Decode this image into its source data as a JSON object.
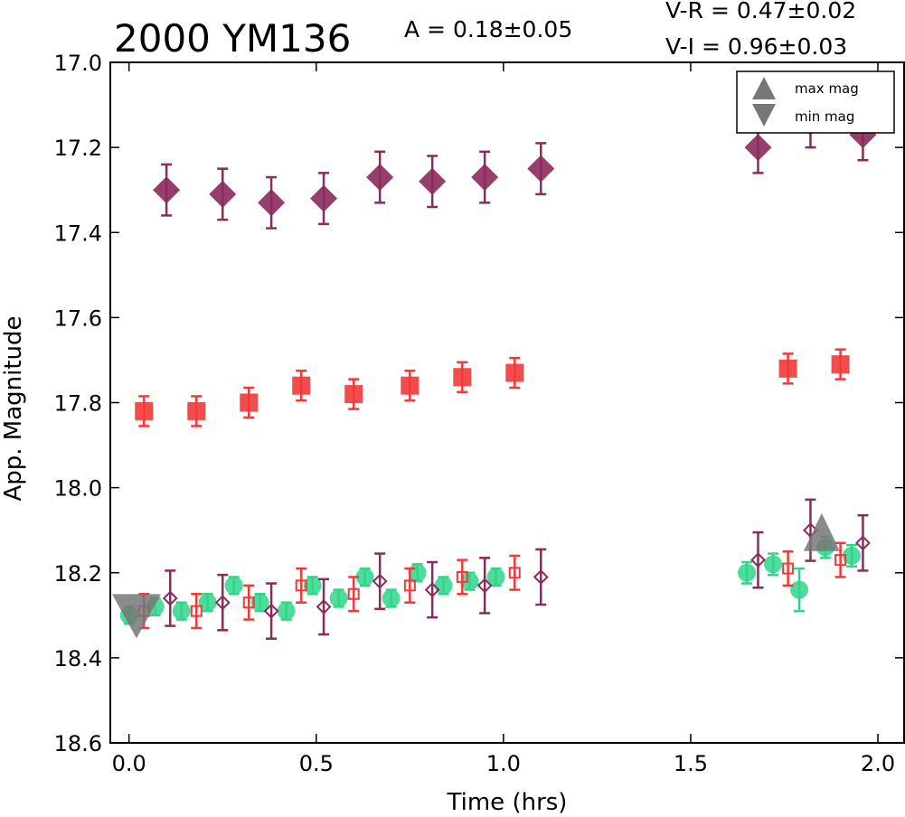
{
  "header": {
    "title": "2000 YM136",
    "amplitude": "A  = 0.18±0.05",
    "color_vr": "V-R = 0.47±0.02",
    "color_vi": "V-I  = 0.96±0.03"
  },
  "legend": {
    "max_label": "max mag",
    "min_label": "min mag",
    "placement": "top-right"
  },
  "chart_data": {
    "type": "scatter",
    "title": "2000 YM136",
    "xlabel": "Time (hrs)",
    "ylabel": "App. Magnitude",
    "xlim": [
      -0.05,
      2.07
    ],
    "ylim": [
      17.0,
      18.6
    ],
    "y_inverted": true,
    "grid": false,
    "x_ticks": [
      "0.0",
      "0.5",
      "1.0",
      "1.5",
      "2.0"
    ],
    "y_ticks": [
      "17.0",
      "17.2",
      "17.4",
      "17.6",
      "17.8",
      "18.0",
      "18.2",
      "18.4",
      "18.6"
    ],
    "colors": {
      "purple": "#8b2a5c",
      "red": "#f23838",
      "green": "#2ed68a",
      "marker_gray": "#777777"
    },
    "series": [
      {
        "marker": "filled-diamond",
        "color": "#8b2a5c",
        "points": [
          {
            "x": 0.1,
            "y": 17.3,
            "err": 0.06
          },
          {
            "x": 0.25,
            "y": 17.31,
            "err": 0.06
          },
          {
            "x": 0.38,
            "y": 17.33,
            "err": 0.06
          },
          {
            "x": 0.52,
            "y": 17.32,
            "err": 0.06
          },
          {
            "x": 0.67,
            "y": 17.27,
            "err": 0.06
          },
          {
            "x": 0.81,
            "y": 17.28,
            "err": 0.06
          },
          {
            "x": 0.95,
            "y": 17.27,
            "err": 0.06
          },
          {
            "x": 1.1,
            "y": 17.25,
            "err": 0.06
          },
          {
            "x": 1.68,
            "y": 17.2,
            "err": 0.06
          },
          {
            "x": 1.82,
            "y": 17.14,
            "err": 0.06
          },
          {
            "x": 1.96,
            "y": 17.17,
            "err": 0.06
          }
        ]
      },
      {
        "marker": "filled-square",
        "color": "#f23838",
        "points": [
          {
            "x": 0.04,
            "y": 17.82,
            "err": 0.035
          },
          {
            "x": 0.18,
            "y": 17.82,
            "err": 0.035
          },
          {
            "x": 0.32,
            "y": 17.8,
            "err": 0.035
          },
          {
            "x": 0.46,
            "y": 17.76,
            "err": 0.035
          },
          {
            "x": 0.6,
            "y": 17.78,
            "err": 0.035
          },
          {
            "x": 0.75,
            "y": 17.76,
            "err": 0.035
          },
          {
            "x": 0.89,
            "y": 17.74,
            "err": 0.035
          },
          {
            "x": 1.03,
            "y": 17.73,
            "err": 0.035
          },
          {
            "x": 1.76,
            "y": 17.72,
            "err": 0.035
          },
          {
            "x": 1.9,
            "y": 17.71,
            "err": 0.035
          }
        ]
      },
      {
        "marker": "filled-circle",
        "color": "#2ed68a",
        "points": [
          {
            "x": 0.0,
            "y": 18.3,
            "err": 0.02
          },
          {
            "x": 0.07,
            "y": 18.28,
            "err": 0.02
          },
          {
            "x": 0.14,
            "y": 18.29,
            "err": 0.02
          },
          {
            "x": 0.21,
            "y": 18.27,
            "err": 0.02
          },
          {
            "x": 0.28,
            "y": 18.23,
            "err": 0.02
          },
          {
            "x": 0.35,
            "y": 18.27,
            "err": 0.02
          },
          {
            "x": 0.42,
            "y": 18.29,
            "err": 0.02
          },
          {
            "x": 0.49,
            "y": 18.23,
            "err": 0.02
          },
          {
            "x": 0.56,
            "y": 18.26,
            "err": 0.02
          },
          {
            "x": 0.63,
            "y": 18.21,
            "err": 0.02
          },
          {
            "x": 0.7,
            "y": 18.26,
            "err": 0.02
          },
          {
            "x": 0.77,
            "y": 18.2,
            "err": 0.02
          },
          {
            "x": 0.84,
            "y": 18.23,
            "err": 0.02
          },
          {
            "x": 0.91,
            "y": 18.22,
            "err": 0.02
          },
          {
            "x": 0.98,
            "y": 18.21,
            "err": 0.02
          },
          {
            "x": 1.65,
            "y": 18.2,
            "err": 0.025
          },
          {
            "x": 1.72,
            "y": 18.18,
            "err": 0.025
          },
          {
            "x": 1.79,
            "y": 18.24,
            "err": 0.05
          },
          {
            "x": 1.86,
            "y": 18.14,
            "err": 0.025
          },
          {
            "x": 1.93,
            "y": 18.16,
            "err": 0.025
          }
        ]
      },
      {
        "marker": "open-square",
        "color": "#f23838",
        "points": [
          {
            "x": 0.04,
            "y": 18.29,
            "err": 0.04
          },
          {
            "x": 0.18,
            "y": 18.29,
            "err": 0.04
          },
          {
            "x": 0.32,
            "y": 18.27,
            "err": 0.04
          },
          {
            "x": 0.46,
            "y": 18.23,
            "err": 0.04
          },
          {
            "x": 0.6,
            "y": 18.25,
            "err": 0.04
          },
          {
            "x": 0.75,
            "y": 18.23,
            "err": 0.04
          },
          {
            "x": 0.89,
            "y": 18.21,
            "err": 0.04
          },
          {
            "x": 1.03,
            "y": 18.2,
            "err": 0.04
          },
          {
            "x": 1.76,
            "y": 18.19,
            "err": 0.04
          },
          {
            "x": 1.9,
            "y": 18.17,
            "err": 0.04
          }
        ]
      },
      {
        "marker": "open-diamond",
        "color": "#8b2a5c",
        "points": [
          {
            "x": 0.11,
            "y": 18.26,
            "err": 0.065
          },
          {
            "x": 0.25,
            "y": 18.27,
            "err": 0.065
          },
          {
            "x": 0.38,
            "y": 18.29,
            "err": 0.065
          },
          {
            "x": 0.52,
            "y": 18.28,
            "err": 0.065
          },
          {
            "x": 0.67,
            "y": 18.22,
            "err": 0.065
          },
          {
            "x": 0.81,
            "y": 18.24,
            "err": 0.065
          },
          {
            "x": 0.95,
            "y": 18.23,
            "err": 0.065
          },
          {
            "x": 1.1,
            "y": 18.21,
            "err": 0.065
          },
          {
            "x": 1.68,
            "y": 18.17,
            "err": 0.065
          },
          {
            "x": 1.82,
            "y": 18.1,
            "err": 0.072
          },
          {
            "x": 1.96,
            "y": 18.13,
            "err": 0.065
          }
        ]
      }
    ],
    "extrema_markers": [
      {
        "kind": "max",
        "x": 1.85,
        "y": 18.13,
        "color": "#777777"
      },
      {
        "kind": "min",
        "x": 0.02,
        "y": 18.28,
        "color": "#777777"
      }
    ]
  }
}
